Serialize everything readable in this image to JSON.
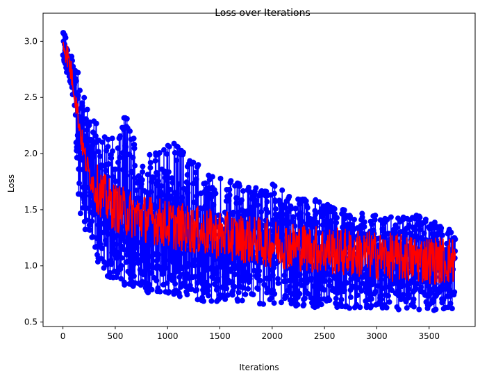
{
  "chart_data": {
    "type": "line",
    "title": "Loss over Iterations",
    "xlabel": "Iterations",
    "ylabel": "Loss",
    "xlim": [
      -190,
      3940
    ],
    "ylim": [
      0.46,
      3.25
    ],
    "x_ticks": [
      0,
      500,
      1000,
      1500,
      2000,
      2500,
      3000,
      3500
    ],
    "y_ticks": [
      0.5,
      1.0,
      1.5,
      2.0,
      2.5,
      3.0
    ],
    "grid": false,
    "legend": "none",
    "x_range": [
      0,
      3750
    ],
    "series": [
      {
        "style": "line+markers",
        "color": "#0000ff",
        "envelope": {
          "x": [
            0,
            50,
            100,
            150,
            200,
            250,
            300,
            400,
            500,
            600,
            700,
            800,
            900,
            1000,
            1200,
            1400,
            1600,
            1800,
            2000,
            2200,
            2400,
            2600,
            2800,
            3000,
            3200,
            3400,
            3600,
            3750
          ],
          "y_min": [
            2.82,
            2.68,
            2.5,
            1.45,
            1.35,
            1.2,
            1.1,
            0.9,
            0.85,
            0.8,
            0.78,
            0.75,
            0.74,
            0.72,
            0.7,
            0.68,
            0.67,
            0.66,
            0.65,
            0.64,
            0.63,
            0.63,
            0.62,
            0.62,
            0.61,
            0.61,
            0.6,
            0.6
          ],
          "y_max": [
            3.14,
            2.95,
            2.85,
            2.72,
            2.55,
            2.4,
            2.3,
            2.2,
            2.15,
            2.36,
            2.1,
            2.05,
            2.0,
            2.16,
            2.02,
            1.8,
            1.78,
            1.7,
            1.74,
            1.62,
            1.6,
            1.53,
            1.5,
            1.47,
            1.45,
            1.45,
            1.38,
            1.3
          ]
        }
      },
      {
        "style": "line",
        "color": "#ff0000",
        "trend": {
          "x": [
            0,
            50,
            100,
            150,
            200,
            250,
            300,
            400,
            500,
            600,
            700,
            800,
            900,
            1000,
            1200,
            1400,
            1600,
            1800,
            2000,
            2200,
            2400,
            2600,
            2800,
            3000,
            3200,
            3400,
            3600,
            3750
          ],
          "y": [
            3.0,
            2.85,
            2.62,
            2.3,
            2.0,
            1.82,
            1.72,
            1.6,
            1.52,
            1.48,
            1.45,
            1.42,
            1.4,
            1.37,
            1.33,
            1.29,
            1.26,
            1.23,
            1.2,
            1.18,
            1.15,
            1.13,
            1.11,
            1.09,
            1.07,
            1.06,
            1.05,
            1.05
          ]
        }
      }
    ]
  }
}
